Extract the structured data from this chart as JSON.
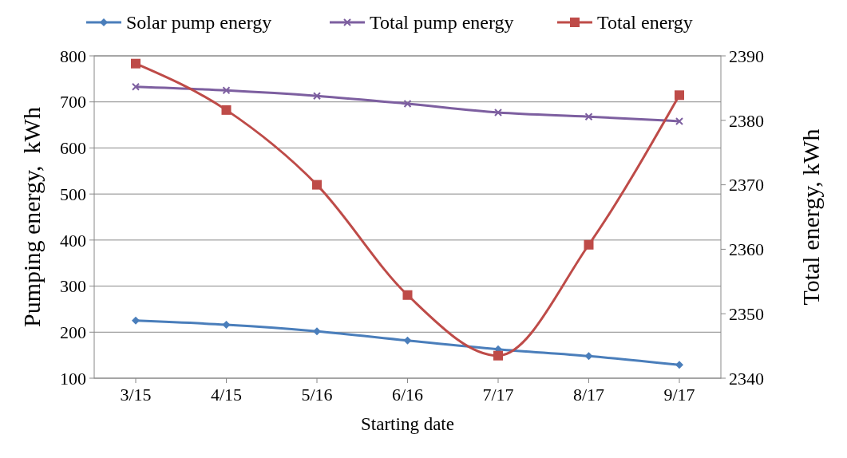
{
  "chart_data": {
    "type": "line",
    "xlabel": "Starting date",
    "ylabel": "Pumping energy,  kWh",
    "y2label": "Total energy, kWh",
    "categories": [
      "3/15",
      "4/15",
      "5/16",
      "6/16",
      "7/17",
      "8/17",
      "9/17"
    ],
    "series": [
      {
        "name": "Solar pump energy",
        "color": "#4a7ebb",
        "marker": "diamond",
        "values": [
          225,
          216,
          202,
          182,
          163,
          148,
          129
        ]
      },
      {
        "name": "Total pump energy",
        "color": "#7d5fa0",
        "marker": "cross",
        "values": [
          733,
          725,
          713,
          696,
          677,
          668,
          658
        ]
      },
      {
        "name": "Total energy",
        "color": "#be4b48",
        "marker": "square",
        "axis": "y2",
        "values": [
          2388.8,
          2381.6,
          2370,
          2352.9,
          2343.5,
          2360.7,
          2383.9
        ]
      }
    ],
    "ylim": [
      100,
      800
    ],
    "yticks": [
      100,
      200,
      300,
      400,
      500,
      600,
      700,
      800
    ],
    "y2lim": [
      2340,
      2390
    ],
    "y2ticks": [
      2340,
      2350,
      2360,
      2370,
      2380,
      2390
    ],
    "grid": "y",
    "legend": "top"
  }
}
